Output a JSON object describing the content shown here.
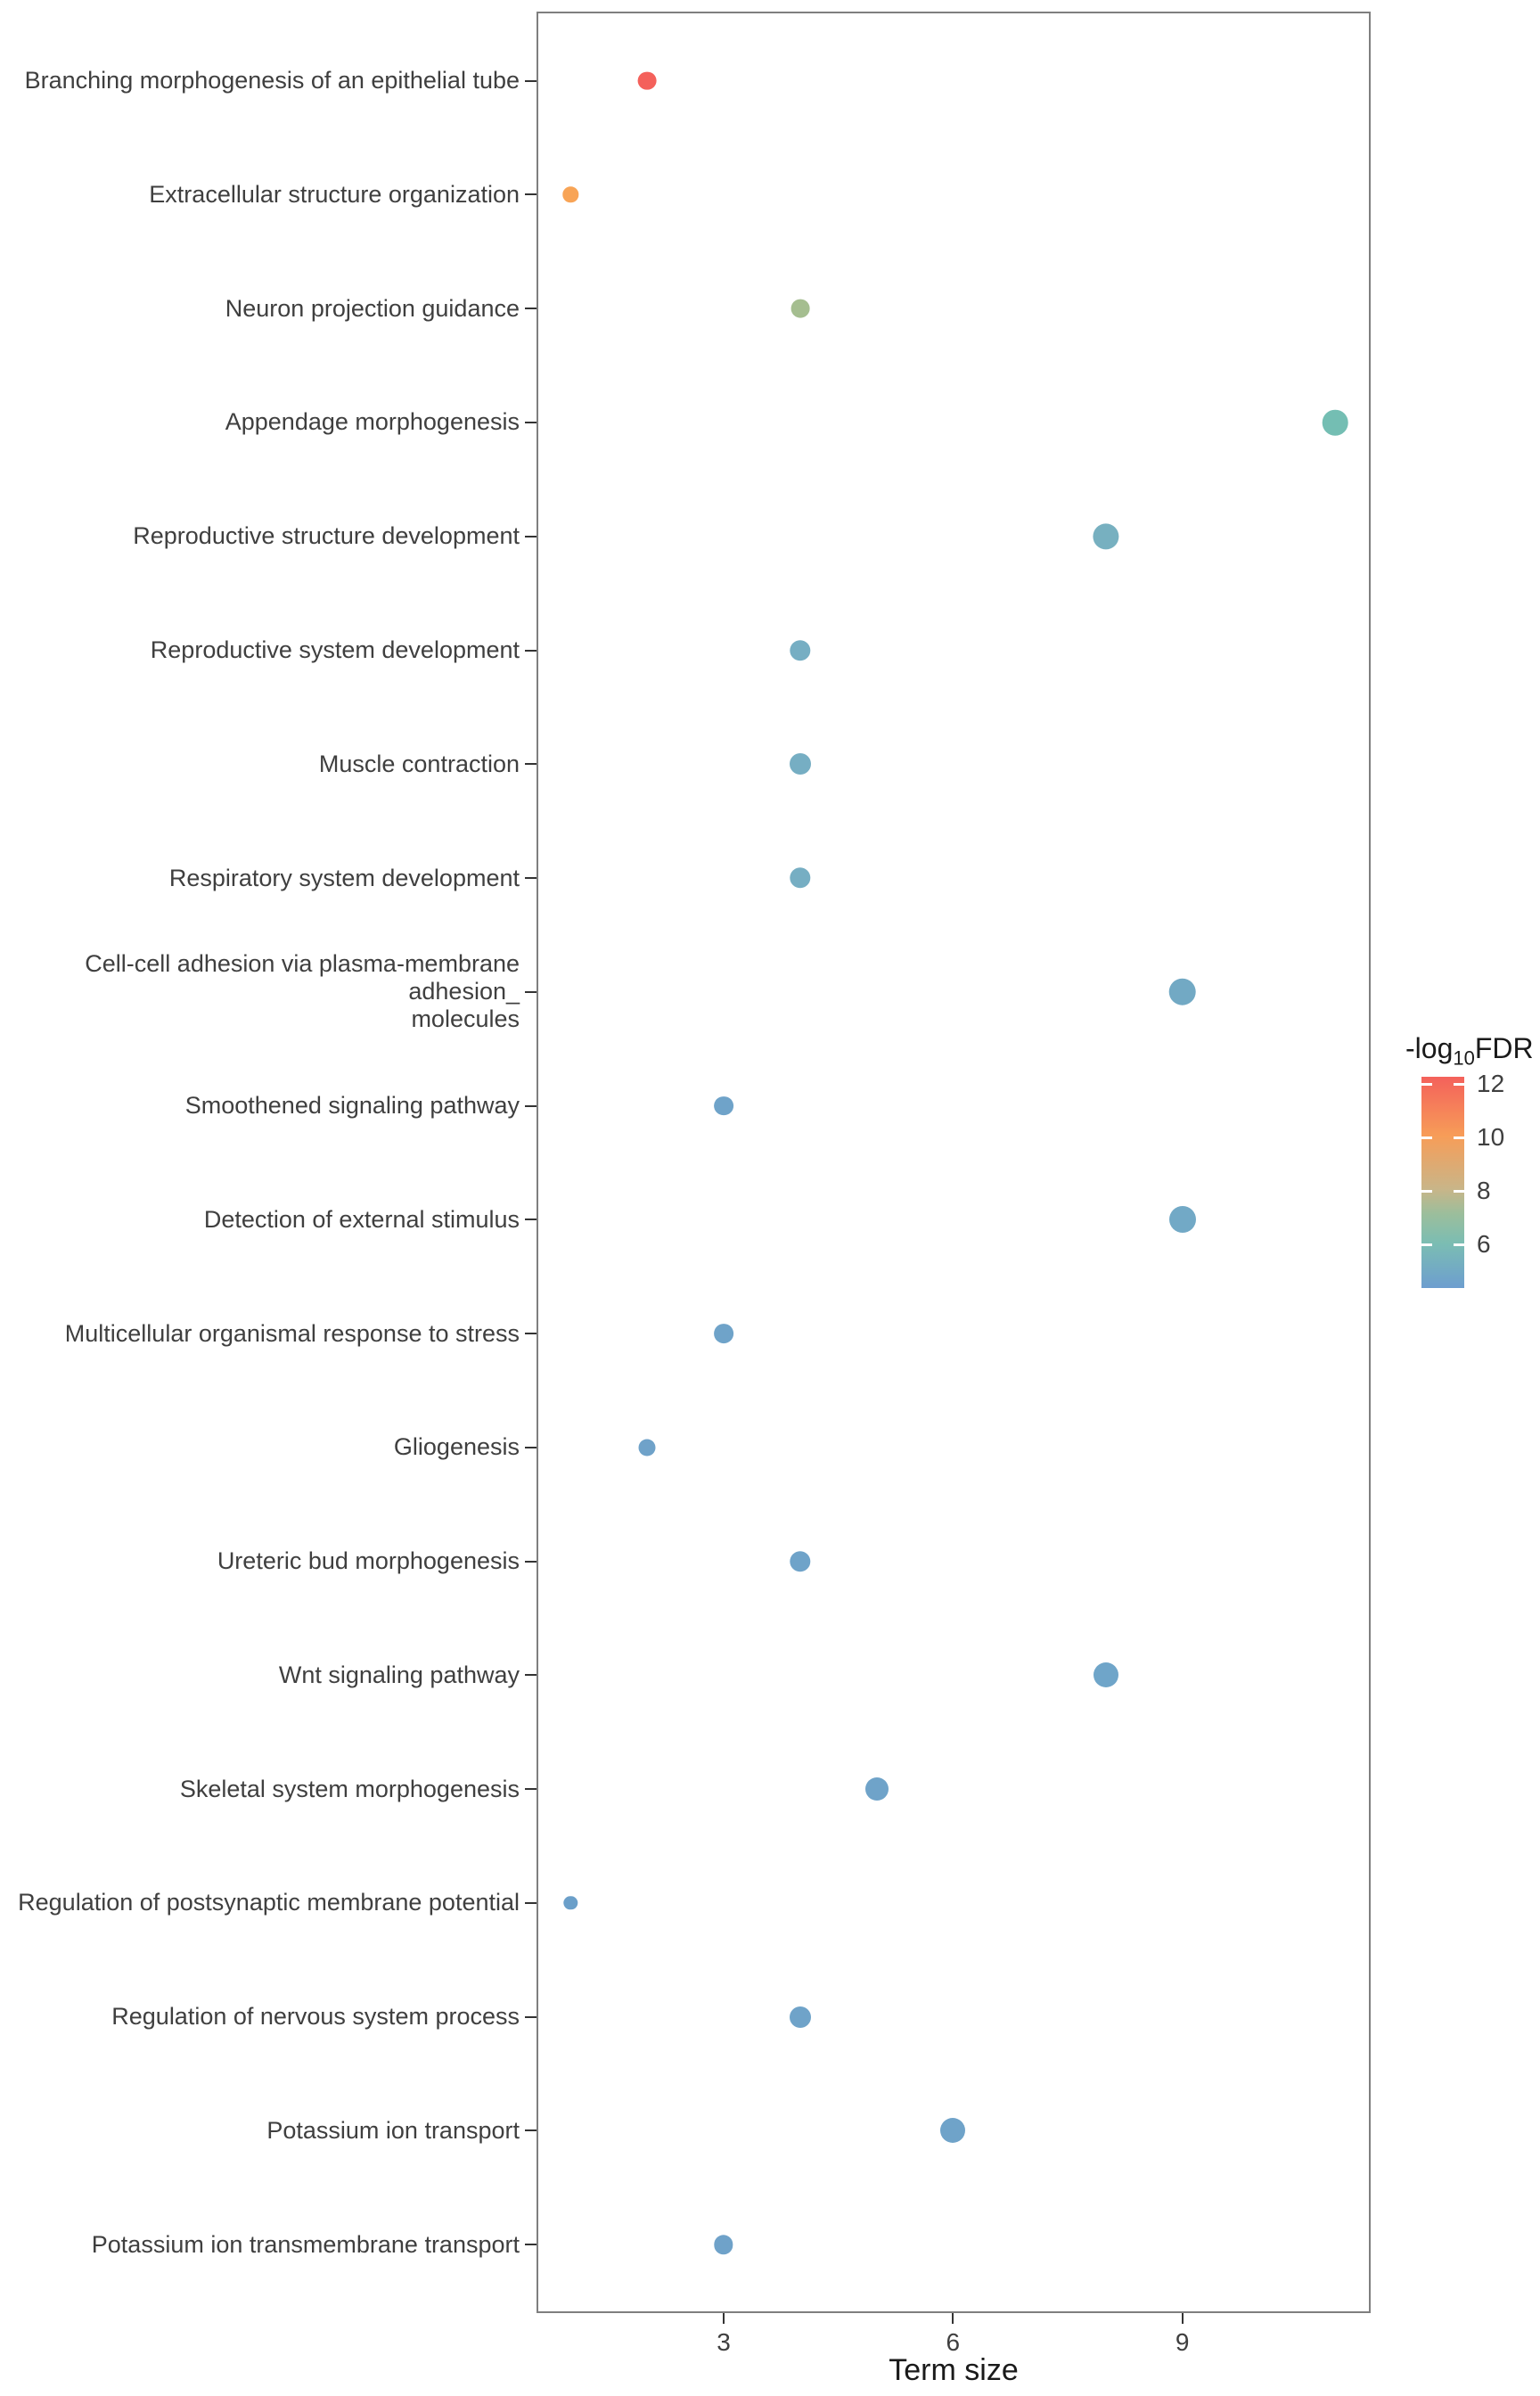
{
  "chart_data": {
    "type": "scatter",
    "title": "",
    "xlabel": "Term size",
    "ylabel": "",
    "x_ticks": [
      3,
      6,
      9
    ],
    "xlim": [
      0.55,
      11.45
    ],
    "grid": false,
    "legend_title_parts": {
      "prefix": "-log",
      "sub": "10",
      "suffix": "FDR"
    },
    "legend": {
      "position": "right",
      "ticks": [
        12,
        10,
        8,
        6
      ],
      "range": [
        4.3,
        12.2
      ],
      "gradient": [
        {
          "pos": 0.0,
          "color": "#F4615B"
        },
        {
          "pos": 0.28,
          "color": "#F79D58"
        },
        {
          "pos": 0.53,
          "color": "#C9B588"
        },
        {
          "pos": 0.65,
          "color": "#9BBE9C"
        },
        {
          "pos": 0.79,
          "color": "#7BBDB3"
        },
        {
          "pos": 1.0,
          "color": "#6D9ECF"
        }
      ]
    },
    "points": [
      {
        "label": "Branching morphogenesis of an epithelial tube",
        "term_size": 2,
        "fdr": 12.2,
        "color": "#F4615B",
        "r": 10.4
      },
      {
        "label": "Extracellular structure organization",
        "term_size": 1,
        "fdr": 10.3,
        "color": "#F8A456",
        "r": 8.7
      },
      {
        "label": "Neuron projection guidance",
        "term_size": 4,
        "fdr": 7.5,
        "color": "#A5BE90",
        "r": 10.4
      },
      {
        "label": "Appendage morphogenesis",
        "term_size": 11,
        "fdr": 6.0,
        "color": "#74BEB3",
        "r": 14.3
      },
      {
        "label": "Reproductive structure development",
        "term_size": 8,
        "fdr": 5.5,
        "color": "#77B0C0",
        "r": 14.6
      },
      {
        "label": "Reproductive system development",
        "term_size": 4,
        "fdr": 5.4,
        "color": "#76AEC3",
        "r": 11.7
      },
      {
        "label": "Muscle contraction",
        "term_size": 4,
        "fdr": 5.4,
        "color": "#76AEC3",
        "r": 12.0
      },
      {
        "label": "Respiratory system development",
        "term_size": 4,
        "fdr": 5.4,
        "color": "#76AEC3",
        "r": 11.7
      },
      {
        "label": "Cell-cell adhesion via plasma-membrane adhesion_\nmolecules",
        "term_size": 9,
        "fdr": 5.1,
        "color": "#72A9C4",
        "r": 15.3
      },
      {
        "label": "Smoothened signaling pathway",
        "term_size": 3,
        "fdr": 4.9,
        "color": "#6FA3C9",
        "r": 10.9
      },
      {
        "label": "Detection of external stimulus",
        "term_size": 9,
        "fdr": 5.1,
        "color": "#72A9C6",
        "r": 15.0
      },
      {
        "label": "Multicellular organismal response to stress",
        "term_size": 3,
        "fdr": 4.9,
        "color": "#6FA3C9",
        "r": 10.9
      },
      {
        "label": "Gliogenesis",
        "term_size": 2,
        "fdr": 4.8,
        "color": "#6FA2C9",
        "r": 9.5
      },
      {
        "label": "Ureteric bud morphogenesis",
        "term_size": 4,
        "fdr": 4.9,
        "color": "#6FA3C9",
        "r": 11.7
      },
      {
        "label": "Wnt signaling pathway",
        "term_size": 8,
        "fdr": 4.9,
        "color": "#6FA5C9",
        "r": 14.0
      },
      {
        "label": "Skeletal system morphogenesis",
        "term_size": 5,
        "fdr": 4.9,
        "color": "#6FA3C9",
        "r": 13.0
      },
      {
        "label": "Regulation of postsynaptic membrane potential",
        "term_size": 1,
        "fdr": 4.7,
        "color": "#6B9FC9",
        "r": 7.7
      },
      {
        "label": "Regulation of nervous system process",
        "term_size": 4,
        "fdr": 4.9,
        "color": "#6FA3C9",
        "r": 12.0
      },
      {
        "label": "Potassium ion transport",
        "term_size": 6,
        "fdr": 4.9,
        "color": "#6FA3C9",
        "r": 14.0
      },
      {
        "label": "Potassium ion transmembrane transport",
        "term_size": 3,
        "fdr": 4.8,
        "color": "#6FA2C9",
        "r": 10.7
      }
    ]
  }
}
